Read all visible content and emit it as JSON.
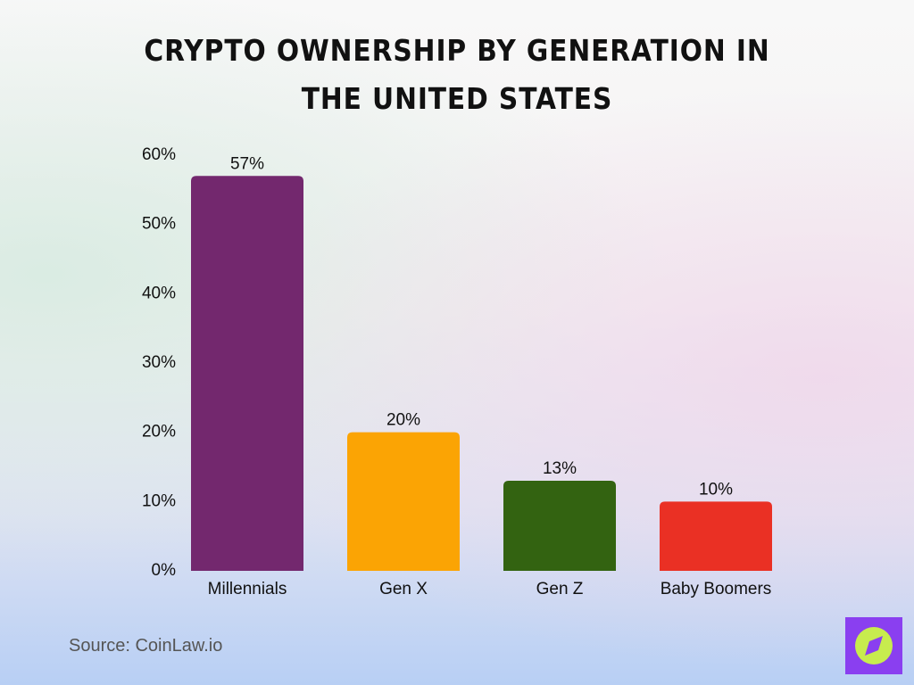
{
  "chart_data": {
    "type": "bar",
    "title": "Crypto Ownership by Generation in the United States",
    "categories": [
      "Millennials",
      "Gen X",
      "Gen Z",
      "Baby Boomers"
    ],
    "values": [
      57,
      20,
      13,
      10
    ],
    "value_labels": [
      "57%",
      "20%",
      "13%",
      "10%"
    ],
    "colors": [
      "#73286e",
      "#fba404",
      "#336311",
      "#ea3024"
    ],
    "ylim": [
      0,
      60
    ],
    "yticks": [
      {
        "value": 0,
        "label": "0%"
      },
      {
        "value": 10,
        "label": "10%"
      },
      {
        "value": 20,
        "label": "20%"
      },
      {
        "value": 30,
        "label": "30%"
      },
      {
        "value": 40,
        "label": "40%"
      },
      {
        "value": 50,
        "label": "50%"
      },
      {
        "value": 60,
        "label": "60%"
      }
    ],
    "grid": false,
    "source": "Source: CoinLaw.io"
  }
}
